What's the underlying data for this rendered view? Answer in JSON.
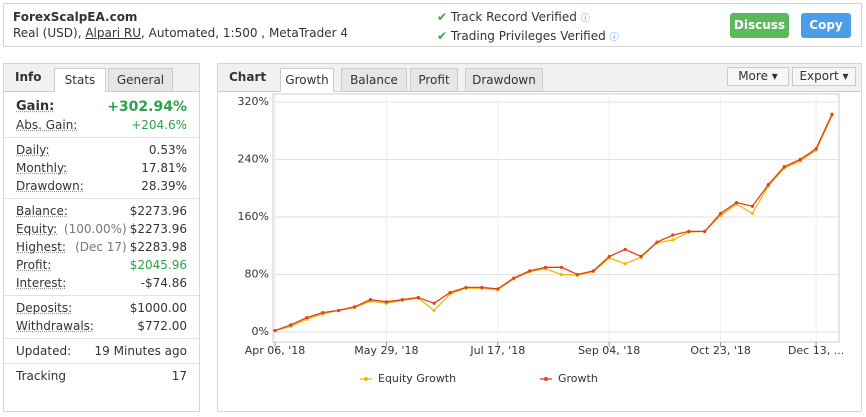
{
  "header": {
    "title": "ForexScalpEA.com",
    "account": "Real (USD), ",
    "broker": "Alpari RU",
    "details": ", Automated, 1:500 , MetaTrader 4",
    "verified": [
      "Track Record Verified",
      "Trading Privileges Verified"
    ],
    "buttons": [
      "Discuss",
      "Copy"
    ]
  },
  "info": {
    "tabs": [
      "Info",
      "Stats",
      "General"
    ],
    "groups": [
      [
        [
          "Gain:",
          "+302.94%"
        ],
        [
          "Abs. Gain:",
          "+204.6%"
        ]
      ],
      [
        [
          "Daily:",
          "0.53%"
        ],
        [
          "Monthly:",
          "17.81%"
        ],
        [
          "Drawdown:",
          "28.39%"
        ]
      ],
      [
        [
          "Balance:",
          "$2273.96"
        ],
        [
          "Equity:",
          "(100.00%)",
          "$2273.96"
        ],
        [
          "Highest:",
          "(Dec 17)",
          "$2283.98"
        ],
        [
          "Profit:",
          "$2045.96"
        ],
        [
          "Interest:",
          "-$74.86"
        ]
      ],
      [
        [
          "Deposits:",
          "$1000.00"
        ],
        [
          "Withdrawals:",
          "$772.00"
        ]
      ],
      [
        [
          "Updated:",
          "19 Minutes ago"
        ]
      ],
      [
        [
          "Tracking",
          "17"
        ]
      ]
    ]
  },
  "chart_panel": {
    "tabs": [
      "Chart",
      "Growth",
      "Balance",
      "Profit",
      "Drawdown"
    ],
    "menus": [
      "More",
      "Export"
    ]
  },
  "chart_data": {
    "type": "line",
    "categories": [
      "Apr 06, '18",
      null,
      null,
      null,
      null,
      null,
      null,
      "May 29, '18",
      null,
      null,
      null,
      null,
      null,
      null,
      "Jul 17, '18",
      null,
      null,
      null,
      null,
      null,
      null,
      "Sep 04, '18",
      null,
      null,
      null,
      null,
      null,
      null,
      "Oct 23, '18",
      null,
      null,
      null,
      null,
      null,
      "Dec 13, ...",
      null
    ],
    "series": [
      {
        "name": "Equity Growth",
        "color": "#f2b705",
        "values": [
          2,
          8,
          18,
          25,
          30,
          34,
          43,
          40,
          44,
          47,
          30,
          53,
          61,
          61,
          59,
          74,
          84,
          88,
          80,
          79,
          84,
          103,
          95,
          104,
          124,
          128,
          139,
          140,
          162,
          178,
          165,
          203,
          228,
          238,
          253,
          301
        ]
      },
      {
        "name": "Growth",
        "color": "#e0401c",
        "values": [
          2,
          10,
          20,
          27,
          30,
          35,
          45,
          42,
          45,
          48,
          40,
          55,
          62,
          62,
          60,
          75,
          85,
          90,
          90,
          80,
          85,
          105,
          115,
          105,
          125,
          135,
          140,
          140,
          165,
          180,
          175,
          205,
          230,
          240,
          255,
          303
        ]
      }
    ],
    "ylim": [
      0,
      320
    ],
    "yticks": [
      {
        "value": 0,
        "label": "0%"
      },
      {
        "value": 80,
        "label": "80%"
      },
      {
        "value": 160,
        "label": "160%"
      },
      {
        "value": 240,
        "label": "240%"
      },
      {
        "value": 320,
        "label": "320%"
      }
    ],
    "grid": true
  }
}
